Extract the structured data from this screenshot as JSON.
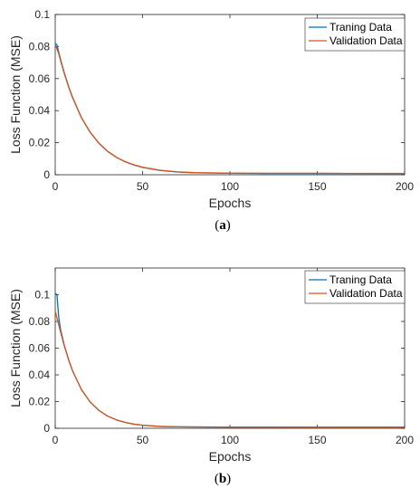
{
  "chart_data": [
    {
      "type": "line",
      "caption": "(a)",
      "caption_bold": "a",
      "xlabel": "Epochs",
      "ylabel": "Loss Function (MSE)",
      "xlim": [
        0,
        200
      ],
      "ylim": [
        0,
        0.1
      ],
      "xticks": [
        0,
        50,
        100,
        150,
        200
      ],
      "yticks": [
        0,
        0.02,
        0.04,
        0.06,
        0.08,
        0.1
      ],
      "ytick_labels": [
        "0",
        "0.02",
        "0.04",
        "0.06",
        "0.08",
        "0.1"
      ],
      "grid": false,
      "legend": "top-right",
      "series": [
        {
          "name": "Traning Data",
          "color": "#0072BD",
          "x": [
            0,
            1,
            2,
            3,
            5,
            8,
            10,
            15,
            20,
            25,
            30,
            35,
            40,
            45,
            50,
            60,
            70,
            80,
            100,
            120,
            150,
            200
          ],
          "values": [
            0.082,
            0.081,
            0.0765,
            0.0722,
            0.0643,
            0.054,
            0.0481,
            0.0357,
            0.0265,
            0.0197,
            0.0146,
            0.0109,
            0.0081,
            0.0061,
            0.0046,
            0.0027,
            0.0017,
            0.0012,
            0.0009,
            0.0008,
            0.0008,
            0.0007
          ]
        },
        {
          "name": "Validation Data",
          "color": "#D95319",
          "x": [
            0,
            1,
            2,
            3,
            5,
            8,
            10,
            15,
            20,
            25,
            30,
            35,
            40,
            45,
            50,
            60,
            70,
            80,
            100,
            120,
            150,
            200
          ],
          "values": [
            0.081,
            0.0785,
            0.0755,
            0.0715,
            0.0638,
            0.0537,
            0.0479,
            0.0356,
            0.0265,
            0.0197,
            0.0146,
            0.0109,
            0.0082,
            0.0062,
            0.0047,
            0.0028,
            0.0018,
            0.0013,
            0.001,
            0.0009,
            0.0009,
            0.0008
          ]
        }
      ]
    },
    {
      "type": "line",
      "caption": "(b)",
      "caption_bold": "b",
      "xlabel": "Epochs",
      "ylabel": "Loss Function (MSE)",
      "xlim": [
        0,
        200
      ],
      "ylim": [
        0,
        0.12
      ],
      "xticks": [
        0,
        50,
        100,
        150,
        200
      ],
      "yticks": [
        0,
        0.02,
        0.04,
        0.06,
        0.08,
        0.1
      ],
      "ytick_labels": [
        "0",
        "0.02",
        "0.04",
        "0.06",
        "0.08",
        "0.1"
      ],
      "grid": false,
      "legend": "top-right",
      "series": [
        {
          "name": "Traning Data",
          "color": "#0072BD",
          "x": [
            0,
            1,
            2,
            3,
            5,
            8,
            10,
            15,
            20,
            25,
            30,
            35,
            40,
            45,
            50,
            60,
            70,
            80,
            100,
            120,
            150,
            200
          ],
          "values": [
            0.101,
            0.1,
            0.083,
            0.0745,
            0.063,
            0.05,
            0.0428,
            0.029,
            0.0197,
            0.0134,
            0.0091,
            0.0063,
            0.0044,
            0.0031,
            0.0023,
            0.0014,
            0.0011,
            0.001,
            0.0009,
            0.0009,
            0.0008,
            0.0008
          ]
        },
        {
          "name": "Validation Data",
          "color": "#D95319",
          "x": [
            0,
            1,
            2,
            3,
            5,
            8,
            10,
            15,
            20,
            25,
            30,
            35,
            40,
            45,
            50,
            60,
            70,
            80,
            100,
            120,
            150,
            200
          ],
          "values": [
            0.088,
            0.0825,
            0.0775,
            0.0725,
            0.0625,
            0.05,
            0.0428,
            0.029,
            0.0197,
            0.0134,
            0.0091,
            0.0063,
            0.0044,
            0.0031,
            0.0023,
            0.0014,
            0.0011,
            0.001,
            0.0009,
            0.0009,
            0.0008,
            0.0008
          ]
        }
      ]
    }
  ]
}
